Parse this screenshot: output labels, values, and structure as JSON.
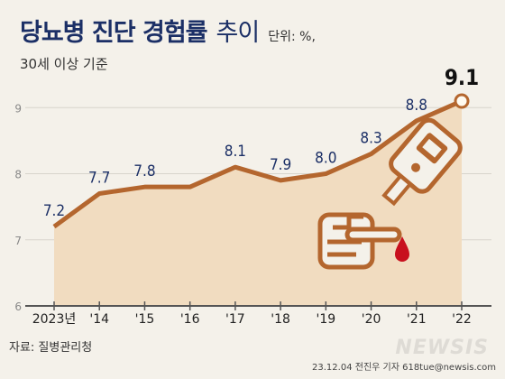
{
  "header": {
    "title": "당뇨병 진단 경험률",
    "title_suffix": "추이",
    "unit": "단위: %,",
    "subtitle": "30세 이상 기준"
  },
  "footer": {
    "source": "자료: 질병관리청",
    "credit": "23.12.04 전진우 기자 618tue@newsis.com",
    "watermark": "NEWSIS"
  },
  "colors": {
    "line": "#b4662e",
    "area": "#f1dcc0",
    "text": "#1b2f66",
    "axis": "#555555",
    "grid": "#d8d4cc"
  },
  "chart_data": {
    "type": "area",
    "title": "당뇨병 진단 경험률 추이",
    "categories": [
      "2023년",
      "'14",
      "'15",
      "'16",
      "'17",
      "'18",
      "'19",
      "'20",
      "'21",
      "'22"
    ],
    "series": [
      {
        "values": [
          7.2,
          7.7,
          7.8,
          7.8,
          8.1,
          7.9,
          8.0,
          8.3,
          8.8,
          9.1
        ]
      }
    ],
    "data_labels": [
      "7.2",
      "7.7",
      "7.8",
      "",
      "8.1",
      "7.9",
      "8.0",
      "8.3",
      "8.8",
      "9.1"
    ],
    "y_ticks": [
      "6",
      "7",
      "8",
      "9"
    ],
    "ylim": [
      6,
      9.4
    ],
    "grid": true,
    "highlight_last": true,
    "xlabel": "",
    "ylabel": ""
  },
  "illustration": {
    "hand_icon": "pointing-hand-icon",
    "glucose_meter_icon": "glucose-meter-icon",
    "blood_drop_icon": "blood-drop-icon"
  }
}
